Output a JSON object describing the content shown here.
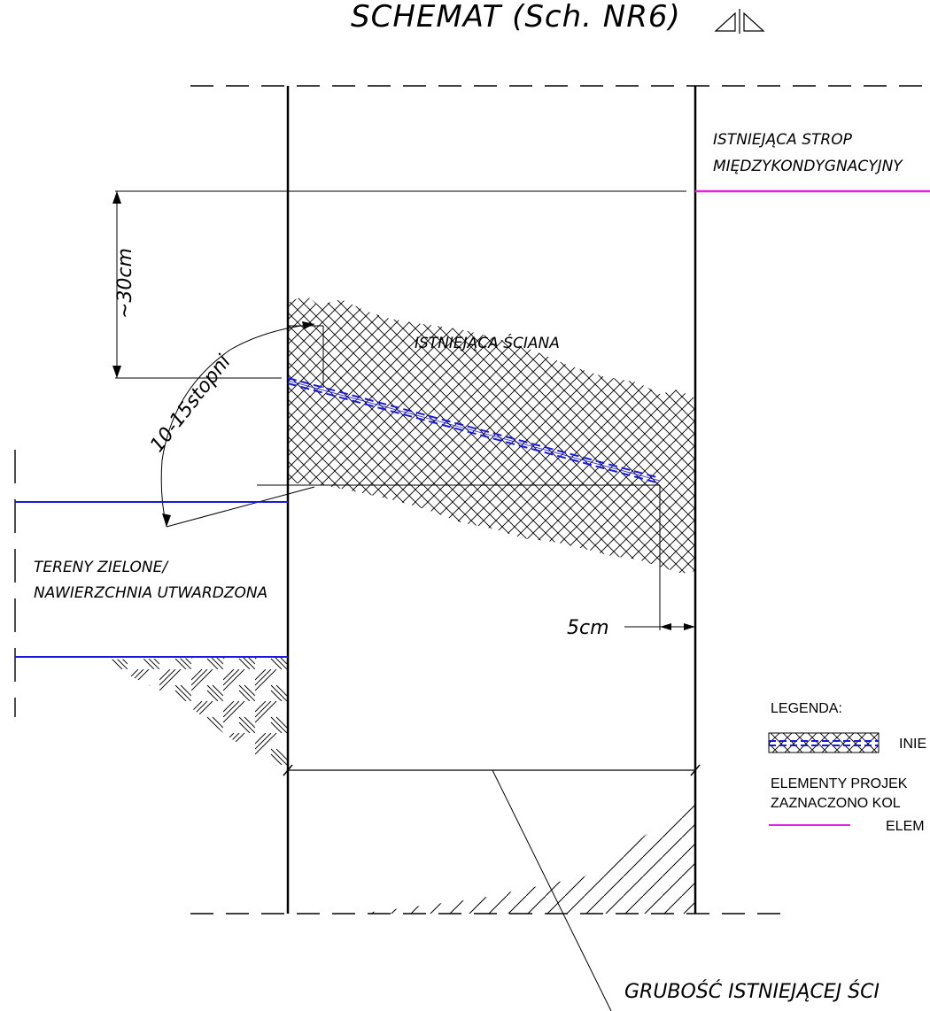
{
  "title": "SCHEMAT (Sch. NR6)",
  "labels": {
    "existing_slab_line1": "ISTNIEJĄCA STROP",
    "existing_slab_line2": "MIĘDZYKONDYGNACYJNY",
    "existing_wall": "ISTNIEJĄCA ŚCIANA",
    "green_line1": "TERENY ZIELONE/",
    "green_line2": "NAWIERZCHNIA UTWARDZONA",
    "wall_thickness": "GRUBOŚĆ ISTNIEJĄCEJ ŚCI"
  },
  "dimensions": {
    "height_30": "~30cm",
    "angle": "10-15stopni",
    "offset_5": "5cm"
  },
  "legend": {
    "heading": "LEGENDA:",
    "item1": "INIE",
    "text_line1": "ELEMENTY PROJEK",
    "text_line2": "ZAZNACZONO KOL",
    "item2": "ELEM"
  },
  "colors": {
    "blue": "#1a1adc",
    "magenta": "#e61ee6",
    "black": "#000000"
  }
}
